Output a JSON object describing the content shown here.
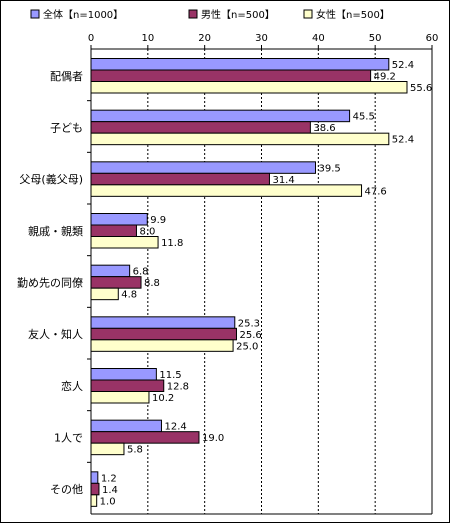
{
  "chart_data": {
    "type": "bar",
    "orientation": "horizontal",
    "categories": [
      "配偶者",
      "子ども",
      "父母(義父母)",
      "親戚・親類",
      "勤め先の同僚",
      "友人・知人",
      "恋人",
      "1人で",
      "その他"
    ],
    "series": [
      {
        "name": "全体【n=1000】",
        "color": "#9999ff",
        "values": [
          52.4,
          45.5,
          39.5,
          9.9,
          6.8,
          25.3,
          11.5,
          12.4,
          1.2
        ]
      },
      {
        "name": "男性【n=500】",
        "color": "#993366",
        "values": [
          49.2,
          38.6,
          31.4,
          8.0,
          8.8,
          25.6,
          12.8,
          19.0,
          1.4
        ]
      },
      {
        "name": "女性【n=500】",
        "color": "#ffffcc",
        "values": [
          55.6,
          52.4,
          47.6,
          11.8,
          4.8,
          25.0,
          10.2,
          5.8,
          1.0
        ]
      }
    ],
    "xlim": [
      0,
      60
    ],
    "xticks": [
      0,
      10,
      20,
      30,
      40,
      50,
      60
    ],
    "grid": "vertical dashed",
    "legend": "top",
    "title": "",
    "xlabel": "",
    "ylabel": ""
  }
}
